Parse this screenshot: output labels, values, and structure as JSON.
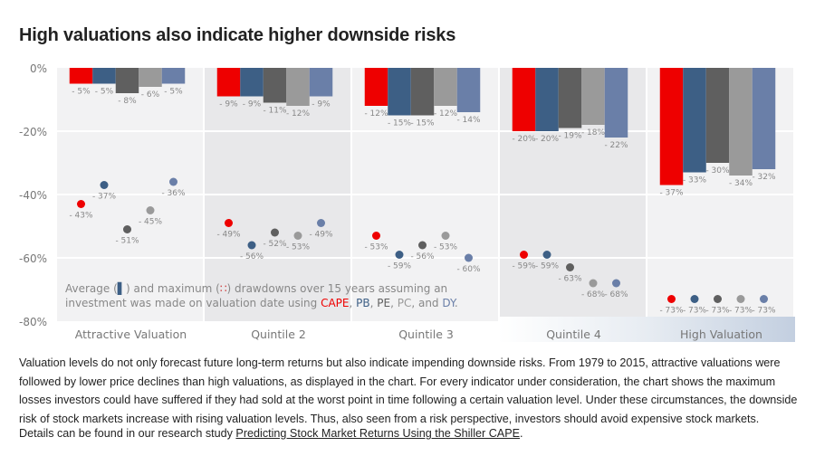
{
  "page": {
    "title": "High valuations also indicate higher downside risks",
    "paragraph": "Valuation levels do not only forecast future long-term returns but also indicate impending downside risks. From 1979 to 2015, attractive valuations were followed by lower price declines than high valuations, as displayed in the chart. For every indicator under consideration, the chart shows the maximum losses investors could have suffered if they had sold at the worst point in time following a certain valuation level. Under these circumstances, the downside risk of stock markets increase with rising valuation levels. Thus, also seen from a risk perspective, investors should avoid expensive stock markets.",
    "details_prefix": "Details can be found in our research study ",
    "details_link": "Predicting Stock Market Returns Using the Shiller CAPE",
    "details_suffix": "."
  },
  "chart_data": {
    "type": "bar",
    "title": "High valuations also indicate higher downside risks",
    "xlabel": "",
    "ylabel": "",
    "ylim": [
      -80,
      0
    ],
    "yticks": [
      0,
      -20,
      -40,
      -60,
      -80
    ],
    "ytick_labels": [
      "0%",
      "-20%",
      "-40%",
      "-60%",
      "-80%"
    ],
    "grid": true,
    "categories": [
      "Attractive Valuation",
      "Quintile 2",
      "Quintile 3",
      "Quintile 4",
      "High Valuation"
    ],
    "series": [
      {
        "name": "CAPE",
        "color": "#ee0000",
        "average": [
          -5,
          -9,
          -12,
          -20,
          -37
        ],
        "maximum": [
          -43,
          -49,
          -53,
          -59,
          -73
        ]
      },
      {
        "name": "PB",
        "color": "#3d5f85",
        "average": [
          -5,
          -9,
          -15,
          -20,
          -33
        ],
        "maximum": [
          -37,
          -56,
          -59,
          -59,
          -73
        ]
      },
      {
        "name": "PE",
        "color": "#5f5f5f",
        "average": [
          -8,
          -11,
          -15,
          -19,
          -30
        ],
        "maximum": [
          -51,
          -52,
          -56,
          -63,
          -73
        ]
      },
      {
        "name": "PC",
        "color": "#9a9a9a",
        "average": [
          -6,
          -12,
          -12,
          -18,
          -34
        ],
        "maximum": [
          -45,
          -53,
          -53,
          -68,
          -73
        ]
      },
      {
        "name": "DY",
        "color": "#6a7fa8",
        "average": [
          -5,
          -9,
          -14,
          -22,
          -32
        ],
        "maximum": [
          -36,
          -49,
          -60,
          -68,
          -73
        ]
      }
    ],
    "annotation": {
      "line1_a": "Average (",
      "line1_b": ") and maximum (",
      "line1_c": ") drawdowns over 15 years assuming an",
      "line2_prefix": "investment was made on valuation date using ",
      "line2_items": [
        "CAPE",
        ", ",
        "PB",
        ", ",
        "PE",
        ", ",
        "PC",
        ", and ",
        "DY",
        "."
      ]
    }
  }
}
